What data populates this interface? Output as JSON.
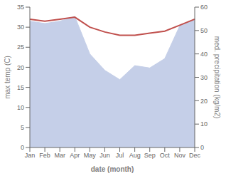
{
  "chart_data": {
    "type": "line",
    "xlabel": "date (month)",
    "ylabel": "max temp (C)",
    "y2label": "med. precipitation (kg/m2)",
    "categories": [
      "Jan",
      "Feb",
      "Mar",
      "Apr",
      "May",
      "Jun",
      "Jul",
      "Aug",
      "Sep",
      "Oct",
      "Nov",
      "Dec"
    ],
    "series": [
      {
        "type": "area",
        "axis": "y2",
        "color": "#c5cfe8",
        "values": [
          54.0,
          53.0,
          54.0,
          56.0,
          40.0,
          33.0,
          29.0,
          35.0,
          34.0,
          38.0,
          52.0,
          55.0
        ]
      },
      {
        "type": "line",
        "axis": "y",
        "color": "#c0504d",
        "values": [
          32.0,
          31.5,
          32.0,
          32.5,
          30.0,
          28.8,
          28.0,
          28.0,
          28.5,
          29.0,
          30.5,
          32.0
        ]
      }
    ],
    "ylim": [
      0,
      35
    ],
    "yticks": [
      0,
      5,
      10,
      15,
      20,
      25,
      30,
      35
    ],
    "y2lim": [
      0,
      60
    ],
    "y2ticks": [
      0,
      10,
      20,
      30,
      40,
      50,
      60
    ],
    "grid": false
  }
}
